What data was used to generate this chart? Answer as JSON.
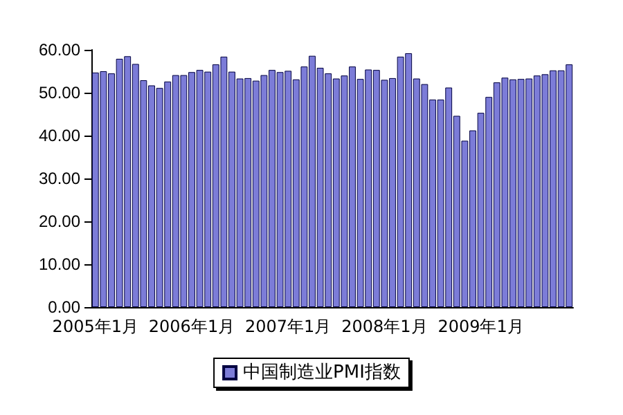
{
  "chart_data": {
    "type": "bar",
    "categories": [
      "2005年1月",
      null,
      null,
      null,
      null,
      null,
      null,
      null,
      null,
      null,
      null,
      null,
      "2006年1月",
      null,
      null,
      null,
      null,
      null,
      null,
      null,
      null,
      null,
      null,
      null,
      "2007年1月",
      null,
      null,
      null,
      null,
      null,
      null,
      null,
      null,
      null,
      null,
      null,
      "2008年1月",
      null,
      null,
      null,
      null,
      null,
      null,
      null,
      null,
      null,
      null,
      null,
      "2009年1月",
      null,
      null,
      null,
      null,
      null,
      null,
      null,
      null,
      null,
      null,
      null
    ],
    "series": [
      {
        "name": "中国制造业PMI指数",
        "color": "#7c7cd8",
        "values": [
          54.7,
          55.0,
          54.5,
          57.9,
          58.5,
          56.7,
          52.9,
          51.7,
          51.1,
          52.6,
          54.1,
          54.1,
          54.8,
          55.3,
          54.9,
          56.6,
          58.4,
          54.9,
          53.3,
          53.4,
          52.8,
          54.1,
          55.3,
          54.8,
          55.1,
          53.1,
          56.1,
          58.6,
          55.8,
          54.5,
          53.3,
          54.0,
          56.1,
          53.2,
          55.4,
          55.3,
          53.0,
          53.4,
          58.4,
          59.2,
          53.3,
          52.0,
          48.4,
          48.4,
          51.2,
          44.6,
          38.8,
          41.2,
          45.3,
          49.0,
          52.4,
          53.5,
          53.1,
          53.2,
          53.3,
          54.0,
          54.3,
          55.2,
          55.2,
          56.6
        ]
      }
    ],
    "ylim": [
      0,
      60
    ],
    "yticks": [
      {
        "value": 0,
        "label": "0.00"
      },
      {
        "value": 10,
        "label": "10.00"
      },
      {
        "value": 20,
        "label": "20.00"
      },
      {
        "value": 30,
        "label": "30.00"
      },
      {
        "value": 40,
        "label": "40.00"
      },
      {
        "value": 50,
        "label": "50.00"
      },
      {
        "value": 60,
        "label": "60.00"
      }
    ],
    "legend": "bottom"
  }
}
